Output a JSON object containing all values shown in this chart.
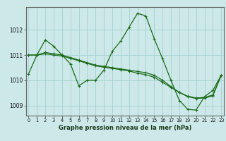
{
  "title": "Graphe pression niveau de la mer (hPa)",
  "background_color": "#cce8e8",
  "grid_color": "#a8d4d4",
  "line_color": "#1a6b1a",
  "x_ticks": [
    0,
    1,
    2,
    3,
    4,
    5,
    6,
    7,
    8,
    9,
    10,
    11,
    12,
    13,
    14,
    15,
    16,
    17,
    18,
    19,
    20,
    21,
    22,
    23
  ],
  "y_ticks": [
    1009,
    1010,
    1011,
    1012
  ],
  "ylim": [
    1008.6,
    1012.9
  ],
  "xlim": [
    -0.3,
    23.3
  ],
  "series1": [
    1010.25,
    1011.0,
    1011.6,
    1011.35,
    1011.0,
    1010.65,
    1009.78,
    1010.0,
    1010.0,
    1010.4,
    1011.15,
    1011.55,
    1012.1,
    1012.65,
    1012.55,
    1011.65,
    1010.85,
    1010.0,
    1009.2,
    1008.85,
    1008.82,
    1009.35,
    1009.6,
    1010.2
  ],
  "series2": [
    1011.0,
    1011.0,
    1011.1,
    1011.05,
    1011.0,
    1010.9,
    1010.8,
    1010.7,
    1010.6,
    1010.55,
    1010.5,
    1010.45,
    1010.4,
    1010.35,
    1010.3,
    1010.2,
    1010.0,
    1009.75,
    1009.52,
    1009.35,
    1009.28,
    1009.3,
    1009.38,
    1010.2
  ],
  "series3": [
    1011.0,
    1011.0,
    1011.05,
    1011.0,
    1010.96,
    1010.87,
    1010.77,
    1010.67,
    1010.57,
    1010.52,
    1010.47,
    1010.42,
    1010.37,
    1010.28,
    1010.22,
    1010.12,
    1009.92,
    1009.72,
    1009.52,
    1009.37,
    1009.3,
    1009.32,
    1009.42,
    1010.2
  ]
}
